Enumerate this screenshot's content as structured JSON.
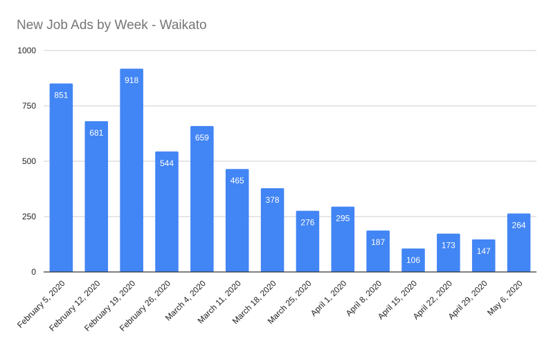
{
  "colors": {
    "bar": "#4285f4",
    "gridline": "#cccccc",
    "baseline": "#333333",
    "text": "#222222",
    "title": "#757575"
  },
  "chart_data": {
    "type": "bar",
    "title": "New Job Ads by Week - Waikato",
    "xlabel": "",
    "ylabel": "",
    "ylim": [
      0,
      1000
    ],
    "yticks": [
      0,
      250,
      500,
      750,
      1000
    ],
    "grid": true,
    "legend": "none",
    "categories": [
      "February 5, 2020",
      "February 12, 2020",
      "February 19, 2020",
      "February 26, 2020",
      "March 4, 2020",
      "March 11, 2020",
      "March 18, 2020",
      "March 25, 2020",
      "April 1, 2020",
      "April 8, 2020",
      "April 15, 2020",
      "April 22, 2020",
      "April 29, 2020",
      "May 6, 2020"
    ],
    "values": [
      851,
      681,
      918,
      544,
      659,
      465,
      378,
      276,
      295,
      187,
      106,
      173,
      147,
      264
    ]
  }
}
